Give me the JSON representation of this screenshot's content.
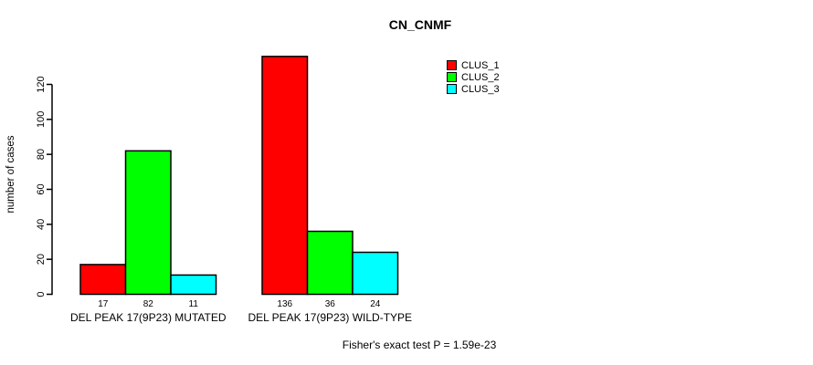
{
  "title": "CN_CNMF",
  "ylabel": "number of cases",
  "footnote": "Fisher's exact test P = 1.59e-23",
  "chart_data": {
    "type": "bar",
    "grouped": true,
    "categories": [
      "DEL PEAK 17(9P23) MUTATED",
      "DEL PEAK 17(9P23) WILD-TYPE"
    ],
    "series": [
      {
        "name": "CLUS_1",
        "color": "#ff0000",
        "values": [
          17,
          136
        ]
      },
      {
        "name": "CLUS_2",
        "color": "#00ff00",
        "values": [
          82,
          36
        ]
      },
      {
        "name": "CLUS_3",
        "color": "#00ffff",
        "values": [
          11,
          24
        ]
      }
    ],
    "yticks": [
      0,
      20,
      40,
      60,
      80,
      100,
      120
    ],
    "ylim": [
      0,
      136
    ],
    "show_value_labels": true,
    "value_labels": [
      [
        17,
        82,
        11
      ],
      [
        136,
        36,
        24
      ]
    ],
    "legend_position": "top-right",
    "grid": false
  }
}
